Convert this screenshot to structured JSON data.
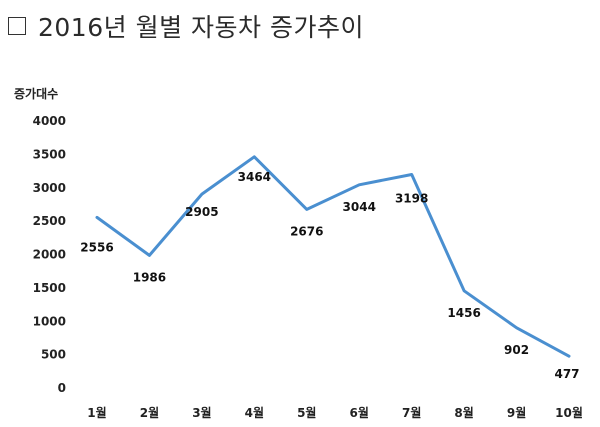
{
  "title": "2016년 월별 자동차 증가추이",
  "icons": {
    "title_marker": "checkbox-icon"
  },
  "colors": {
    "line": "#4a8fd0",
    "text": "#222222"
  },
  "chart_data": {
    "type": "line",
    "title": "2016년 월별 자동차 증가추이",
    "ylabel": "증가대수",
    "xlabel": "",
    "categories": [
      "1월",
      "2월",
      "3월",
      "4월",
      "5월",
      "6월",
      "7월",
      "8월",
      "9월",
      "10월"
    ],
    "series": [
      {
        "values": [
          2556,
          1986,
          2905,
          3464,
          2676,
          3044,
          3198,
          1456,
          902,
          477
        ]
      }
    ],
    "ylim": [
      0,
      4000
    ],
    "yticks": [
      0,
      500,
      1000,
      1500,
      2000,
      2500,
      3000,
      3500,
      4000
    ],
    "grid": false,
    "legend": "none"
  }
}
